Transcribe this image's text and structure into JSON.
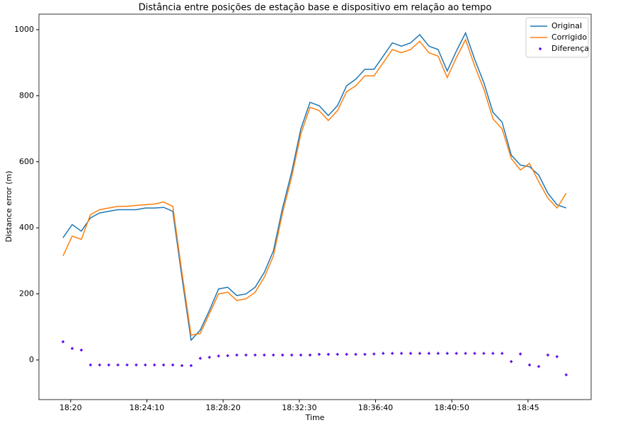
{
  "chart_data": {
    "type": "line",
    "title": "Distância entre posições de estação base e dispositivo em relação ao tempo",
    "x_label": "Time",
    "y_label": "Distance error (m)",
    "x": [
      "18:19:35",
      "18:20:05",
      "18:20:35",
      "18:21:05",
      "18:21:35",
      "18:22:05",
      "18:22:35",
      "18:23:05",
      "18:23:35",
      "18:24:05",
      "18:24:35",
      "18:25:05",
      "18:25:35",
      "18:26:05",
      "18:26:35",
      "18:27:05",
      "18:27:35",
      "18:28:05",
      "18:28:35",
      "18:29:05",
      "18:29:35",
      "18:30:05",
      "18:30:35",
      "18:31:05",
      "18:31:35",
      "18:32:05",
      "18:32:35",
      "18:33:05",
      "18:33:35",
      "18:34:05",
      "18:34:35",
      "18:35:05",
      "18:35:35",
      "18:36:05",
      "18:36:35",
      "18:37:05",
      "18:37:35",
      "18:38:05",
      "18:38:35",
      "18:39:05",
      "18:39:35",
      "18:40:05",
      "18:40:35",
      "18:41:05",
      "18:41:35",
      "18:42:05",
      "18:42:35",
      "18:43:05",
      "18:43:35",
      "18:44:05",
      "18:44:35",
      "18:45:05",
      "18:45:35",
      "18:46:05",
      "18:46:35",
      "18:47:05"
    ],
    "series": [
      {
        "name": "Original",
        "color": "#1f77b4",
        "style": "line",
        "values": [
          370,
          410,
          390,
          430,
          445,
          450,
          455,
          455,
          455,
          460,
          460,
          462,
          450,
          250,
          60,
          90,
          150,
          215,
          220,
          195,
          200,
          220,
          265,
          330,
          460,
          570,
          700,
          780,
          770,
          740,
          770,
          830,
          850,
          880,
          880,
          920,
          960,
          950,
          960,
          985,
          950,
          940,
          875,
          935,
          990,
          910,
          840,
          750,
          720,
          620,
          590,
          585,
          560,
          505,
          470,
          460
        ]
      },
      {
        "name": "Corrigido",
        "color": "#ff7f0e",
        "style": "line",
        "values": [
          315,
          375,
          365,
          440,
          455,
          460,
          465,
          465,
          468,
          470,
          472,
          478,
          465,
          265,
          75,
          80,
          140,
          200,
          205,
          180,
          185,
          205,
          250,
          315,
          445,
          555,
          685,
          765,
          755,
          725,
          755,
          812,
          830,
          860,
          860,
          900,
          940,
          930,
          940,
          965,
          930,
          920,
          855,
          915,
          970,
          890,
          820,
          730,
          700,
          610,
          575,
          595,
          540,
          490,
          460,
          505
        ]
      },
      {
        "name": "Diferença",
        "color": "#5500ee",
        "style": "scatter",
        "values": [
          55,
          35,
          30,
          -15,
          -15,
          -15,
          -15,
          -15,
          -15,
          -15,
          -15,
          -15,
          -15,
          -17,
          -17,
          5,
          8,
          12,
          13,
          15,
          15,
          15,
          15,
          15,
          15,
          15,
          15,
          15,
          17,
          17,
          17,
          17,
          17,
          17,
          18,
          20,
          20,
          20,
          20,
          20,
          20,
          20,
          20,
          20,
          20,
          20,
          20,
          20,
          20,
          -5,
          18,
          -15,
          -20,
          15,
          10,
          -45
        ]
      }
    ],
    "xlim": [
      "18:18:16",
      "18:48:27"
    ],
    "xticks": [
      {
        "value": "18:20:00",
        "label": "18:20"
      },
      "18:24:10",
      "18:28:20",
      "18:32:30",
      "18:36:40",
      "18:40:50",
      {
        "value": "18:45:00",
        "label": "18:45"
      }
    ],
    "ylim": [
      -120,
      1047
    ],
    "yticks": [
      0,
      200,
      400,
      600,
      800,
      1000
    ],
    "legend": "upper right"
  }
}
